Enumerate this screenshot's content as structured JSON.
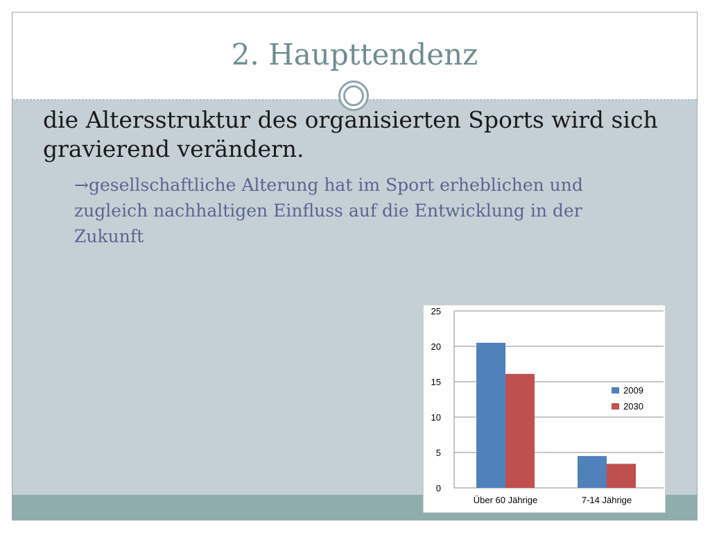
{
  "slide": {
    "title": "2. Haupttendenz",
    "main_text": "die Altersstruktur des organisierten Sports wird sich gravierend verändern.",
    "sub_arrow": "→",
    "sub_text": "gesellschaftliche Alterung hat im Sport erheblichen und zugleich nachhaltigen Einfluss auf die Entwicklung in der Zukunft"
  },
  "colors": {
    "title": "#6f8d91",
    "body_background": "#c5d0d6",
    "bottom_band": "#8fadac",
    "sub_text": "#5a6690"
  },
  "chart_data": {
    "type": "bar",
    "categories": [
      "Über 60 Jährige",
      "7-14 Jährige"
    ],
    "series": [
      {
        "name": "2009",
        "values": [
          20.5,
          4.5
        ],
        "color": "#4f81bd"
      },
      {
        "name": "2030",
        "values": [
          16.1,
          3.4
        ],
        "color": "#c0504d"
      }
    ],
    "ylim": [
      0,
      25
    ],
    "yticks": [
      0,
      5,
      10,
      15,
      20,
      25
    ],
    "grid": true,
    "legend_position": "right",
    "title": "",
    "xlabel": "",
    "ylabel": ""
  }
}
